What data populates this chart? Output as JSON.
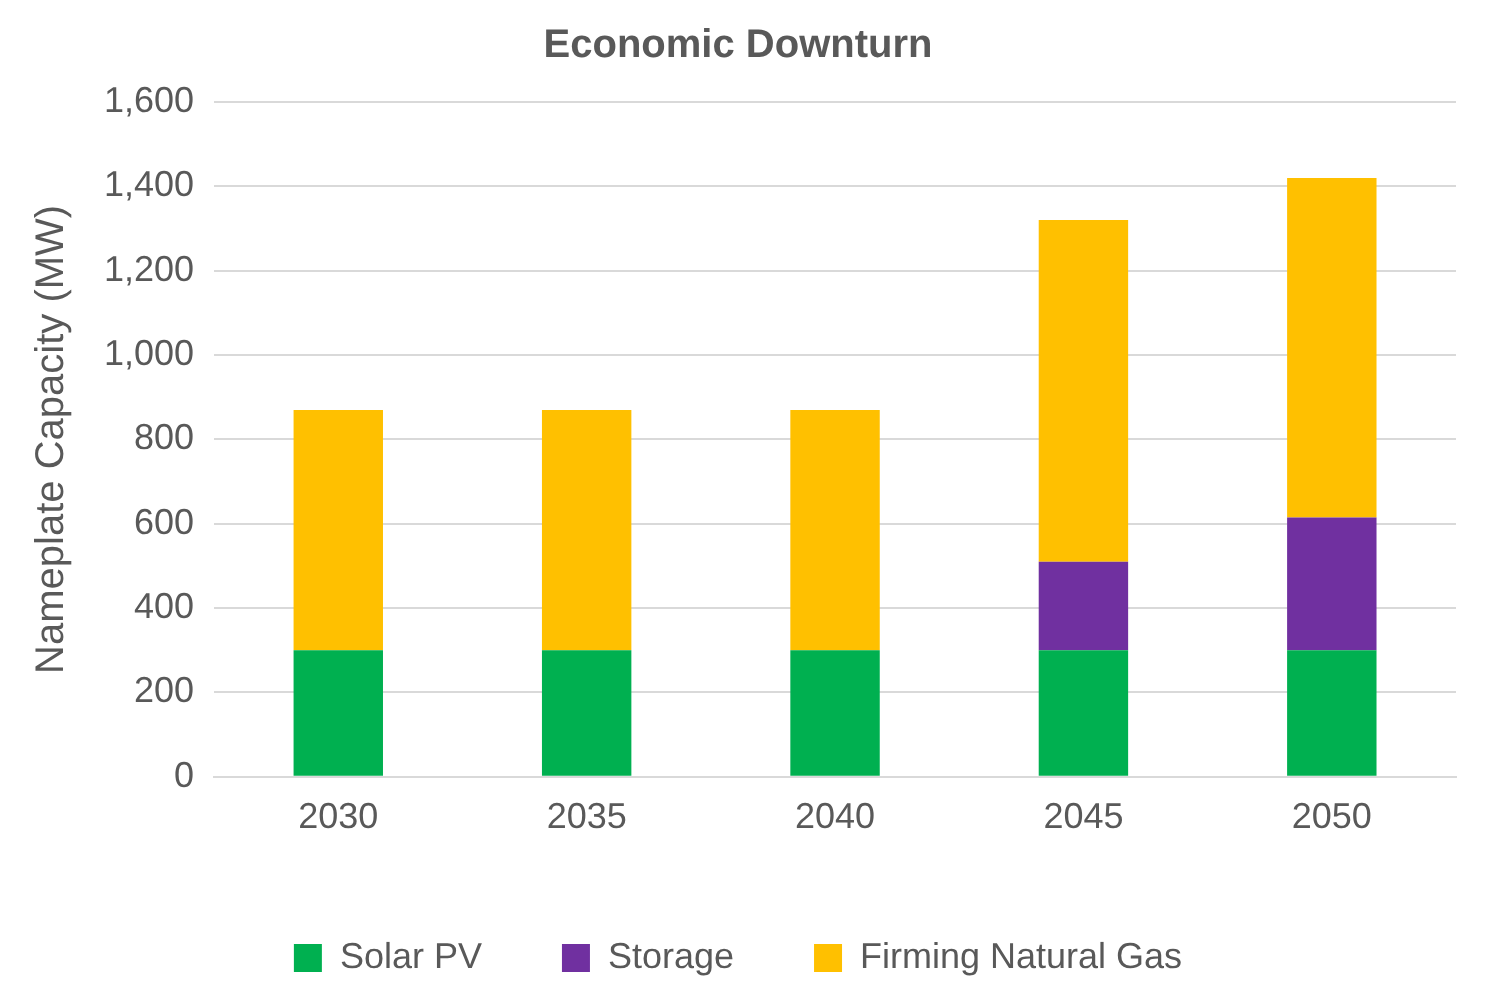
{
  "chart_data": {
    "type": "bar",
    "title": "Economic Downturn",
    "ylabel": "Nameplate Capacity (MW)",
    "categories": [
      "2030",
      "2035",
      "2040",
      "2045",
      "2050"
    ],
    "stacked": true,
    "series": [
      {
        "name": "Solar PV",
        "color": "#00b050",
        "values": [
          300,
          300,
          300,
          300,
          300
        ]
      },
      {
        "name": "Storage",
        "color": "#7030a0",
        "values": [
          0,
          0,
          0,
          210,
          315
        ]
      },
      {
        "name": "Firming Natural Gas",
        "color": "#ffc000",
        "values": [
          570,
          570,
          570,
          810,
          805
        ]
      }
    ],
    "ylim": [
      0,
      1600
    ],
    "yticks": [
      {
        "value": 0,
        "label": "0"
      },
      {
        "value": 200,
        "label": "200"
      },
      {
        "value": 400,
        "label": "400"
      },
      {
        "value": 600,
        "label": "600"
      },
      {
        "value": 800,
        "label": "800"
      },
      {
        "value": 1000,
        "label": "1,000"
      },
      {
        "value": 1200,
        "label": "1,200"
      },
      {
        "value": 1400,
        "label": "1,400"
      },
      {
        "value": 1600,
        "label": "1,600"
      }
    ],
    "grid": "y",
    "legend": "bottom"
  }
}
